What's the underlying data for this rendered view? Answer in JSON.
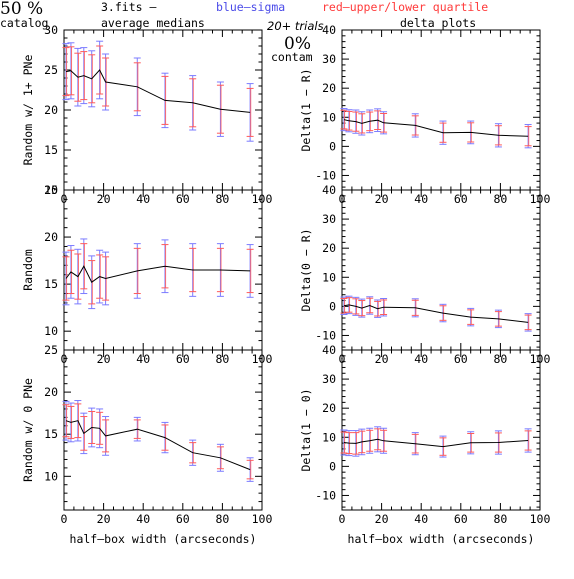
{
  "header": {
    "percent": "50 %",
    "catalog": "catalog",
    "file": "3.fits  –",
    "blue_label": "blue–sigma",
    "red_label": "red–upper/lower quartile",
    "average_medians": "average medians",
    "trials": "20+ trials",
    "delta_plots": "delta plots",
    "contam_pct": "0%",
    "contam": "contam"
  },
  "colors": {
    "line": "#000000",
    "sigma": "#7b7bff",
    "quartile": "#ff5a5a",
    "header_blue": "#4a4ae8",
    "header_red": "#ff3a3a"
  },
  "chart_data": [
    {
      "type": "line",
      "id": "random-1plus",
      "ylabel": "Random w/ 1+ PNe",
      "xlabel": "",
      "xlim": [
        0,
        100
      ],
      "ylim": [
        10,
        30
      ],
      "xticks": [
        0,
        20,
        40,
        60,
        80,
        100
      ],
      "yticks": [
        10,
        15,
        20,
        25,
        30
      ],
      "x": [
        1,
        3.5,
        7,
        10,
        14,
        18,
        21,
        37,
        51,
        65,
        79,
        94
      ],
      "y": [
        24.8,
        24.9,
        24.1,
        24.3,
        23.9,
        25.0,
        23.5,
        22.9,
        21.2,
        20.9,
        20.1,
        19.7
      ],
      "sigma": [
        3.5,
        3.5,
        3.6,
        3.5,
        3.5,
        3.6,
        3.5,
        3.6,
        3.4,
        3.4,
        3.4,
        3.6
      ],
      "quartile": [
        3.0,
        3.0,
        3.0,
        3.0,
        3.0,
        3.0,
        3.0,
        3.0,
        3.0,
        3.0,
        3.0,
        3.0
      ]
    },
    {
      "type": "line",
      "id": "delta-1-R",
      "ylabel": "Delta(1 − R)",
      "xlabel": "",
      "xlim": [
        0,
        100
      ],
      "ylim": [
        -15,
        40
      ],
      "xticks": [
        0,
        20,
        40,
        60,
        80,
        100
      ],
      "yticks": [
        -10,
        0,
        10,
        20,
        30,
        40
      ],
      "x": [
        1,
        3.5,
        7,
        10,
        14,
        18,
        21,
        37,
        51,
        65,
        79,
        94
      ],
      "y": [
        9.2,
        8.8,
        8.5,
        7.9,
        8.6,
        9.0,
        8.1,
        7.2,
        4.7,
        4.8,
        3.8,
        3.5
      ],
      "sigma": [
        3.8,
        3.8,
        4.0,
        4.0,
        3.9,
        3.9,
        3.8,
        4.0,
        4.0,
        3.9,
        4.0,
        4.0
      ],
      "quartile": [
        3.2,
        3.2,
        3.3,
        3.3,
        3.2,
        3.2,
        3.2,
        3.3,
        3.3,
        3.3,
        3.3,
        3.3
      ]
    },
    {
      "type": "line",
      "id": "random",
      "ylabel": "Random",
      "xlabel": "",
      "xlim": [
        0,
        100
      ],
      "ylim": [
        8,
        25
      ],
      "xticks": [
        0,
        20,
        40,
        60,
        80,
        100
      ],
      "yticks": [
        10,
        15,
        20,
        25
      ],
      "x": [
        1,
        3.5,
        7,
        10,
        14,
        18,
        21,
        37,
        51,
        65,
        79,
        94
      ],
      "y": [
        15.6,
        16.3,
        15.8,
        16.9,
        15.2,
        15.8,
        15.6,
        16.4,
        16.9,
        16.5,
        16.5,
        16.4
      ],
      "sigma": [
        2.8,
        2.8,
        2.9,
        2.9,
        2.8,
        2.8,
        2.8,
        2.9,
        2.8,
        2.8,
        2.8,
        2.8
      ],
      "quartile": [
        2.3,
        2.3,
        2.4,
        2.4,
        2.3,
        2.3,
        2.3,
        2.4,
        2.3,
        2.3,
        2.3,
        2.3
      ]
    },
    {
      "type": "line",
      "id": "delta-0-R",
      "ylabel": "Delta(0 − R)",
      "xlabel": "",
      "xlim": [
        0,
        100
      ],
      "ylim": [
        -15,
        40
      ],
      "xticks": [
        0,
        20,
        40,
        60,
        80,
        100
      ],
      "yticks": [
        -10,
        0,
        10,
        20,
        30,
        40
      ],
      "x": [
        1,
        3.5,
        7,
        10,
        14,
        18,
        21,
        37,
        51,
        65,
        79,
        94
      ],
      "y": [
        0.2,
        0.5,
        0.0,
        -0.6,
        0.3,
        -0.8,
        -0.3,
        -0.5,
        -2.3,
        -3.7,
        -4.3,
        -5.5
      ],
      "sigma": [
        3.0,
        3.0,
        3.1,
        3.1,
        3.0,
        3.0,
        3.0,
        3.1,
        3.0,
        3.0,
        3.0,
        3.0
      ],
      "quartile": [
        2.5,
        2.5,
        2.6,
        2.6,
        2.5,
        2.5,
        2.5,
        2.6,
        2.5,
        2.5,
        2.5,
        2.5
      ]
    },
    {
      "type": "line",
      "id": "random-0",
      "ylabel": "Random w/ 0 PNe",
      "xlabel": "half–box width (arcseconds)",
      "xlim": [
        0,
        100
      ],
      "ylim": [
        6,
        25
      ],
      "xticks": [
        0,
        20,
        40,
        60,
        80,
        100
      ],
      "yticks": [
        10,
        15,
        20,
        25
      ],
      "x": [
        1,
        3.5,
        7,
        10,
        14,
        18,
        21,
        37,
        51,
        65,
        79,
        94
      ],
      "y": [
        16.6,
        16.4,
        16.6,
        15.1,
        15.8,
        15.7,
        14.8,
        15.6,
        14.6,
        12.8,
        12.2,
        10.8
      ],
      "sigma": [
        2.3,
        2.3,
        2.4,
        2.4,
        2.3,
        2.3,
        2.3,
        1.4,
        1.8,
        1.5,
        1.6,
        1.4
      ],
      "quartile": [
        1.9,
        1.9,
        2.0,
        2.0,
        1.9,
        1.9,
        1.9,
        1.1,
        1.5,
        1.2,
        1.3,
        1.1
      ]
    },
    {
      "type": "line",
      "id": "delta-1-0",
      "ylabel": "Delta(1 − 0)",
      "xlabel": "half–box width (arcseconds)",
      "xlim": [
        0,
        100
      ],
      "ylim": [
        -15,
        40
      ],
      "xticks": [
        0,
        20,
        40,
        60,
        80,
        100
      ],
      "yticks": [
        -10,
        0,
        10,
        20,
        30,
        40
      ],
      "x": [
        1,
        3.5,
        7,
        10,
        14,
        18,
        21,
        37,
        51,
        65,
        79,
        94
      ],
      "y": [
        8.2,
        8.0,
        7.9,
        8.4,
        8.8,
        9.3,
        8.8,
        7.8,
        6.8,
        8.1,
        8.2,
        8.9
      ],
      "sigma": [
        4.3,
        4.3,
        4.4,
        4.4,
        4.3,
        4.3,
        4.3,
        3.8,
        3.6,
        3.8,
        4.0,
        4.0
      ],
      "quartile": [
        3.6,
        3.6,
        3.7,
        3.7,
        3.6,
        3.6,
        3.6,
        3.2,
        3.0,
        3.2,
        3.3,
        3.3
      ]
    }
  ]
}
